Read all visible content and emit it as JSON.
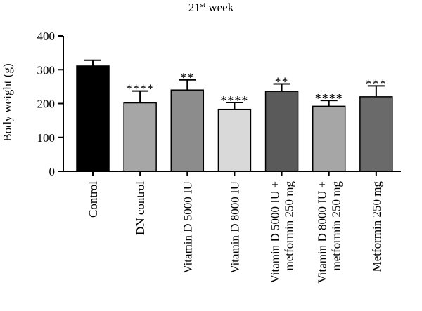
{
  "chart_data": {
    "type": "bar",
    "title": {
      "main": "21",
      "superscript": "st",
      "rest": " week"
    },
    "ylabel": "Body weight (g)",
    "xlabel": "",
    "ylim": [
      0,
      400
    ],
    "yticks": [
      "0",
      "100",
      "200",
      "300",
      "400"
    ],
    "grid": false,
    "legend": "none",
    "categories": [
      [
        "Control"
      ],
      [
        "DN control"
      ],
      [
        "Vitamin D 5000 IU"
      ],
      [
        "Vitamin D 8000 IU"
      ],
      [
        "Vitamin D 5000 IU +",
        "metformin 250 mg"
      ],
      [
        "Vitamin D 8000 IU +",
        "metformin 250 mg"
      ],
      [
        "Metformin 250 mg"
      ]
    ],
    "values": [
      311,
      202,
      240,
      183,
      236,
      192,
      220
    ],
    "errors": [
      17,
      35,
      30,
      20,
      22,
      17,
      32
    ],
    "significance": [
      "",
      "****",
      "**",
      "****",
      "**",
      "****",
      "***"
    ],
    "colors": [
      "#000000",
      "#a6a6a6",
      "#8c8c8c",
      "#d9d9d9",
      "#5a5a5a",
      "#a6a6a6",
      "#6a6a6a"
    ]
  }
}
